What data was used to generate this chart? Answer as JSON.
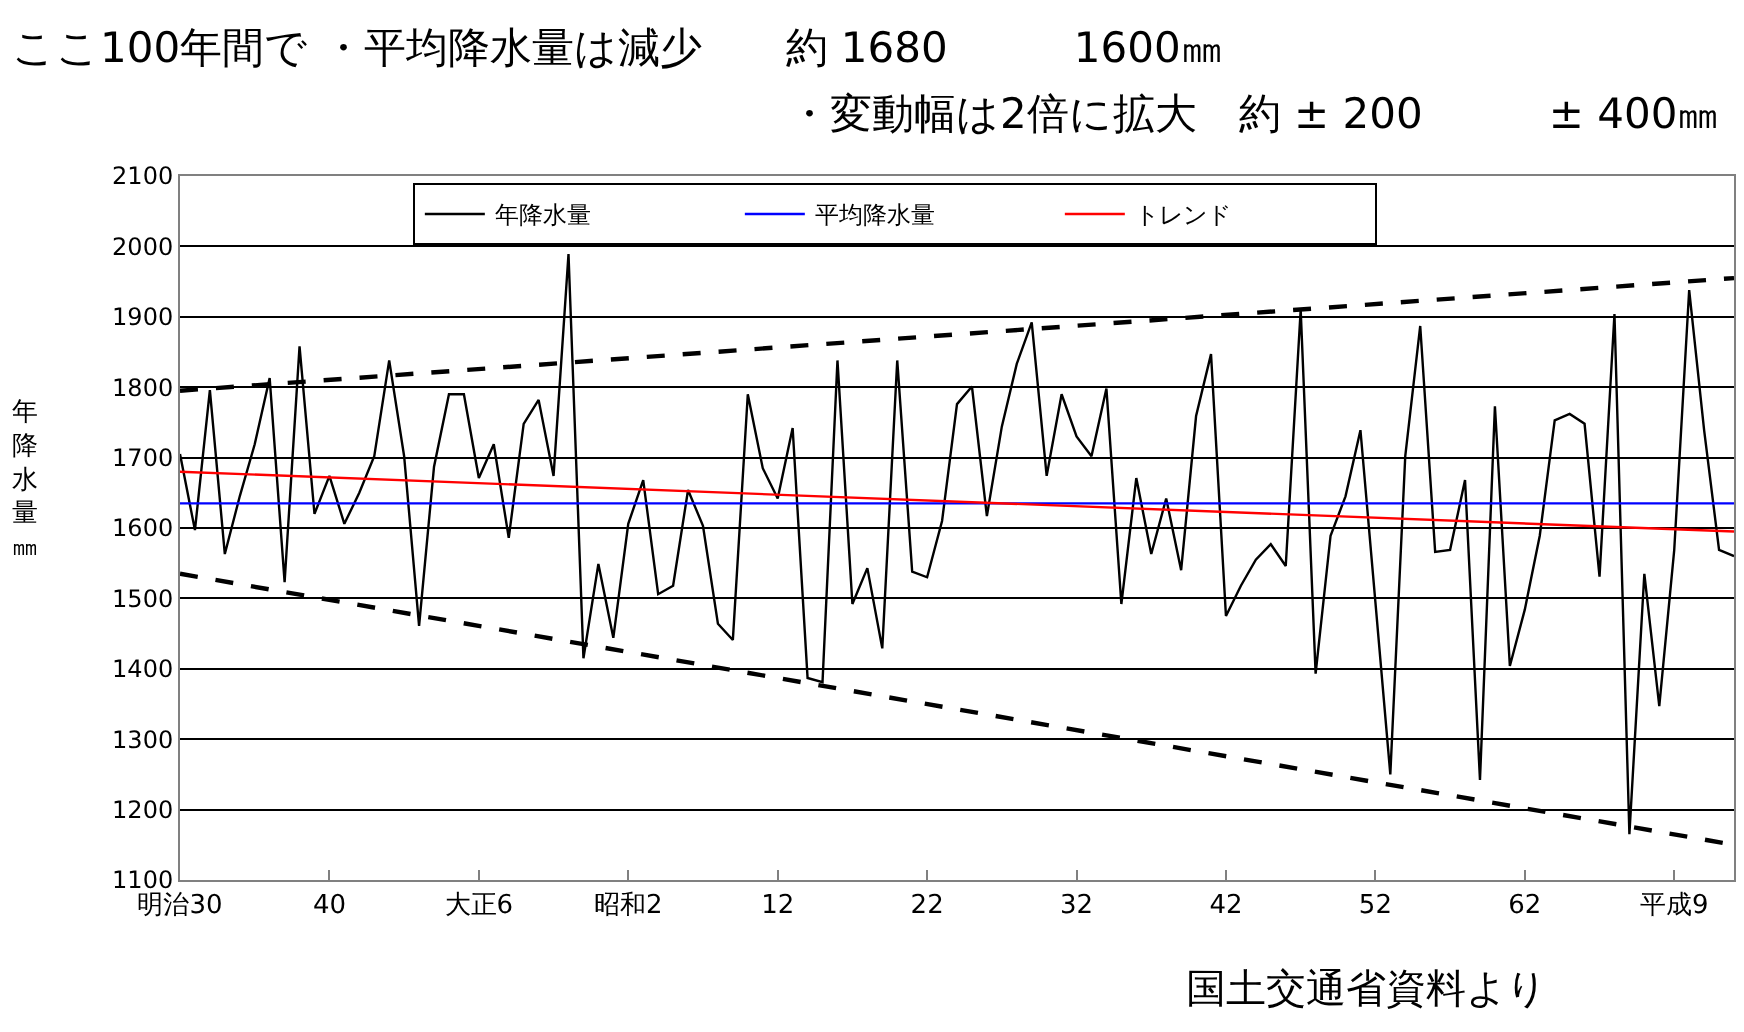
{
  "chart_data": {
    "type": "line",
    "title": "ここ100年間で ・平均降水量は減少　　約 1680　　　1600㎜",
    "subtitle": "・変動幅は2倍に拡大　約 ± 200　　　± 400㎜",
    "ylabel": "年降水量㎜",
    "annotations": [
      "国土交通省資料より"
    ],
    "categories": [
      "明治30",
      null,
      null,
      null,
      null,
      null,
      null,
      null,
      null,
      null,
      "40",
      null,
      null,
      null,
      null,
      null,
      null,
      null,
      null,
      null,
      "大正6",
      null,
      null,
      null,
      null,
      null,
      null,
      null,
      null,
      null,
      "昭和2",
      null,
      null,
      null,
      null,
      null,
      null,
      null,
      null,
      null,
      "12",
      null,
      null,
      null,
      null,
      null,
      null,
      null,
      null,
      null,
      "22",
      null,
      null,
      null,
      null,
      null,
      null,
      null,
      null,
      null,
      "32",
      null,
      null,
      null,
      null,
      null,
      null,
      null,
      null,
      null,
      "42",
      null,
      null,
      null,
      null,
      null,
      null,
      null,
      null,
      null,
      "52",
      null,
      null,
      null,
      null,
      null,
      null,
      null,
      null,
      null,
      "62",
      null,
      null,
      null,
      null,
      null,
      null,
      null,
      null,
      null,
      "平成9",
      null,
      null,
      null,
      null
    ],
    "ylim": [
      1100,
      2100
    ],
    "yticks": [
      1100,
      1200,
      1300,
      1400,
      1500,
      1600,
      1700,
      1800,
      1900,
      2000,
      2100
    ],
    "grid": "y",
    "legend": "top",
    "marker": "none",
    "series": [
      {
        "name": "年降水量",
        "color": "#000000",
        "line_style": "solid",
        "values": [
          1705,
          1597,
          1796,
          1563,
          1645,
          1719,
          1813,
          1523,
          1858,
          1620,
          1674,
          1606,
          1650,
          1702,
          1838,
          1702,
          1461,
          1687,
          1790,
          1790,
          1671,
          1719,
          1586,
          1748,
          1782,
          1674,
          1989,
          1415,
          1549,
          1444,
          1606,
          1668,
          1506,
          1518,
          1654,
          1603,
          1464,
          1441,
          1790,
          1685,
          1642,
          1742,
          1387,
          1381,
          1838,
          1492,
          1543,
          1429,
          1838,
          1538,
          1530,
          1610,
          1776,
          1801,
          1617,
          1744,
          1833,
          1892,
          1674,
          1790,
          1730,
          1702,
          1798,
          1492,
          1671,
          1563,
          1642,
          1540,
          1759,
          1847,
          1475,
          1518,
          1555,
          1577,
          1546,
          1910,
          1393,
          1589,
          1645,
          1739,
          1495,
          1250,
          1702,
          1887,
          1566,
          1569,
          1668,
          1242,
          1773,
          1404,
          1484,
          1589,
          1753,
          1762,
          1748,
          1531,
          1904,
          1165,
          1535,
          1347,
          1569,
          1938,
          1739,
          1569,
          1560
        ]
      },
      {
        "name": "平均降水量",
        "color": "#0000ff",
        "line_style": "solid",
        "values": [
          1635,
          null,
          null,
          null,
          null,
          null,
          null,
          null,
          null,
          null,
          null,
          null,
          null,
          null,
          null,
          null,
          null,
          null,
          null,
          null,
          null,
          null,
          null,
          null,
          null,
          null,
          null,
          null,
          null,
          null,
          null,
          null,
          null,
          null,
          null,
          null,
          null,
          null,
          null,
          null,
          null,
          null,
          null,
          null,
          null,
          null,
          null,
          null,
          null,
          null,
          null,
          null,
          null,
          null,
          null,
          null,
          null,
          null,
          null,
          null,
          null,
          null,
          null,
          null,
          null,
          null,
          null,
          null,
          null,
          null,
          null,
          null,
          null,
          null,
          null,
          null,
          null,
          null,
          null,
          null,
          null,
          null,
          null,
          null,
          null,
          null,
          null,
          null,
          null,
          null,
          null,
          null,
          null,
          null,
          null,
          null,
          null,
          null,
          null,
          null,
          null,
          null,
          null,
          null,
          1635
        ]
      },
      {
        "name": "トレンド",
        "color": "#ff0000",
        "line_style": "solid",
        "values": [
          1680,
          null,
          null,
          null,
          null,
          null,
          null,
          null,
          null,
          null,
          null,
          null,
          null,
          null,
          null,
          null,
          null,
          null,
          null,
          null,
          null,
          null,
          null,
          null,
          null,
          null,
          null,
          null,
          null,
          null,
          null,
          null,
          null,
          null,
          null,
          null,
          null,
          null,
          null,
          null,
          null,
          null,
          null,
          null,
          null,
          null,
          null,
          null,
          null,
          null,
          null,
          null,
          null,
          null,
          null,
          null,
          null,
          null,
          null,
          null,
          null,
          null,
          null,
          null,
          null,
          null,
          null,
          null,
          null,
          null,
          null,
          null,
          null,
          null,
          null,
          null,
          null,
          null,
          null,
          null,
          null,
          null,
          null,
          null,
          null,
          null,
          null,
          null,
          null,
          null,
          null,
          null,
          null,
          null,
          null,
          null,
          null,
          null,
          null,
          null,
          null,
          null,
          null,
          null,
          1595
        ]
      },
      {
        "color": "#000000",
        "line_style": "dashed",
        "values": [
          1795,
          null,
          null,
          null,
          null,
          null,
          null,
          null,
          null,
          null,
          null,
          null,
          null,
          null,
          null,
          null,
          null,
          null,
          null,
          null,
          null,
          null,
          null,
          null,
          null,
          null,
          null,
          null,
          null,
          null,
          null,
          null,
          null,
          null,
          null,
          null,
          null,
          null,
          null,
          null,
          null,
          null,
          null,
          null,
          null,
          null,
          null,
          null,
          null,
          null,
          null,
          null,
          null,
          null,
          null,
          null,
          null,
          null,
          null,
          null,
          null,
          null,
          null,
          null,
          null,
          null,
          null,
          null,
          null,
          null,
          null,
          null,
          null,
          null,
          null,
          null,
          null,
          null,
          null,
          null,
          null,
          null,
          null,
          null,
          null,
          null,
          null,
          null,
          null,
          null,
          null,
          null,
          null,
          null,
          null,
          null,
          null,
          null,
          null,
          null,
          null,
          null,
          null,
          null,
          1955
        ]
      },
      {
        "color": "#000000",
        "line_style": "dashed",
        "values": [
          1535,
          null,
          null,
          null,
          null,
          null,
          null,
          null,
          null,
          null,
          null,
          null,
          null,
          null,
          null,
          null,
          null,
          null,
          null,
          null,
          null,
          null,
          null,
          null,
          null,
          null,
          null,
          null,
          null,
          null,
          null,
          null,
          null,
          null,
          null,
          null,
          null,
          null,
          null,
          null,
          null,
          null,
          null,
          null,
          null,
          null,
          null,
          null,
          null,
          null,
          null,
          null,
          null,
          null,
          null,
          null,
          null,
          null,
          null,
          null,
          null,
          null,
          null,
          null,
          null,
          null,
          null,
          null,
          null,
          null,
          null,
          null,
          null,
          null,
          null,
          null,
          null,
          null,
          null,
          null,
          null,
          null,
          null,
          null,
          null,
          null,
          null,
          null,
          null,
          null,
          null,
          null,
          null,
          null,
          null,
          null,
          null,
          null,
          null,
          null,
          null,
          null,
          null,
          null,
          1150
        ]
      }
    ]
  }
}
